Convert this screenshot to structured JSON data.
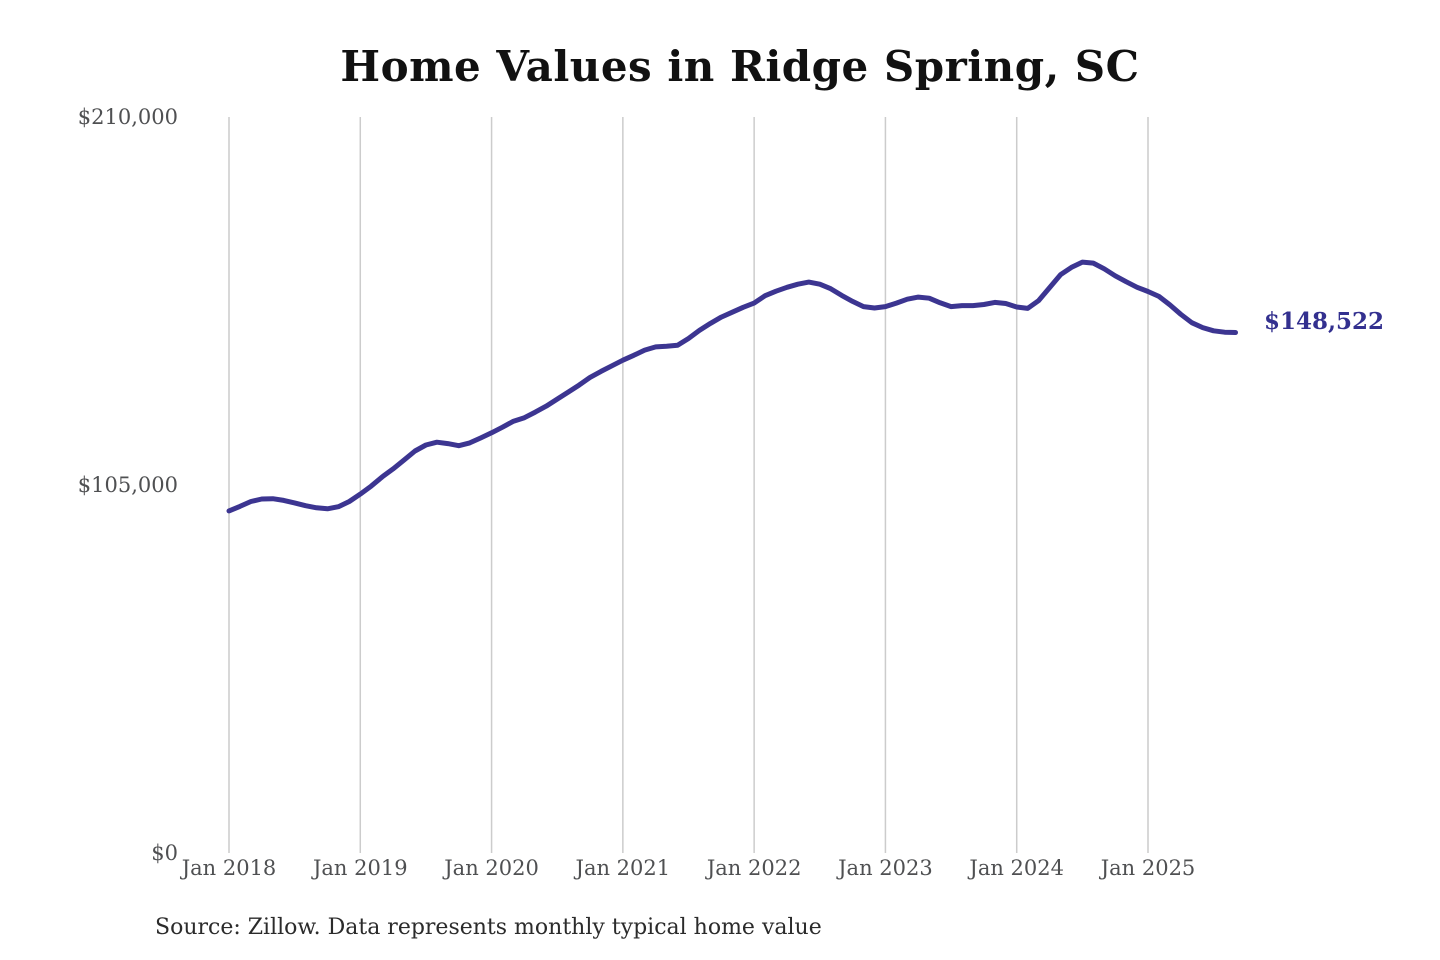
{
  "chart_data": {
    "type": "line",
    "title": "Home Values in Ridge Spring, SC",
    "source": "Source: Zillow. Data represents monthly typical home value",
    "series_name": "Monthly typical home value",
    "x_start": "2018-01",
    "x_freq": "monthly",
    "x_ticks": [
      "Jan 2018",
      "Jan 2019",
      "Jan 2020",
      "Jan 2021",
      "Jan 2022",
      "Jan 2023",
      "Jan 2024",
      "Jan 2025"
    ],
    "y_ticks": [
      {
        "label": "$210,000",
        "value": 210000
      },
      {
        "label": "$105,000",
        "value": 105000
      },
      {
        "label": "$0",
        "value": 0
      }
    ],
    "ylim": [
      0,
      210000
    ],
    "xlabel": "",
    "ylabel": "",
    "grid": "vertical-only",
    "legend": "none",
    "values": [
      97600,
      98900,
      100300,
      101000,
      101100,
      100600,
      99900,
      99100,
      98500,
      98200,
      98800,
      100300,
      102400,
      104700,
      107300,
      109600,
      112100,
      114700,
      116400,
      117200,
      116800,
      116200,
      117000,
      118400,
      119900,
      121500,
      123200,
      124200,
      125800,
      127500,
      129500,
      131500,
      133500,
      135700,
      137400,
      139000,
      140600,
      142000,
      143500,
      144400,
      144600,
      144900,
      146800,
      149100,
      151100,
      152900,
      154300,
      155700,
      156900,
      159000,
      160300,
      161400,
      162300,
      162900,
      162300,
      161000,
      159100,
      157400,
      155900,
      155500,
      155900,
      156900,
      158000,
      158600,
      158300,
      157000,
      155900,
      156200,
      156200,
      156500,
      157100,
      156800,
      155800,
      155400,
      157600,
      161300,
      165000,
      167100,
      168600,
      168300,
      166700,
      164700,
      163000,
      161400,
      160200,
      158800,
      156400,
      153700,
      151300,
      149900,
      149000,
      148600,
      148522
    ],
    "latest_value": 148522,
    "latest_label": "$148,522",
    "line_color": "#3c3591",
    "latest_label_color": "#33308f",
    "gridline_color": "#cccccc"
  }
}
